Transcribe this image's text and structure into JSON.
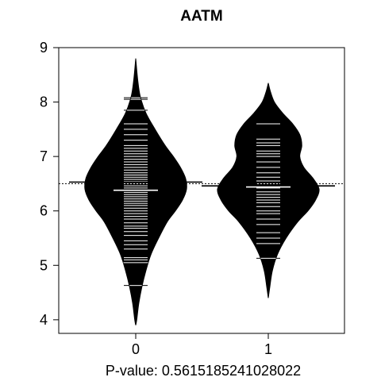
{
  "chart_data": {
    "type": "beanplot",
    "title": "AATM",
    "xlabel": "P-value: 0.5615185241028022",
    "ylabel": "",
    "categories": [
      "0",
      "1"
    ],
    "ylim": [
      3.75,
      9
    ],
    "yticks": [
      4,
      5,
      6,
      7,
      8,
      9
    ],
    "overall_mean": 6.5,
    "colors": {
      "bean_fill": "#000000",
      "bean_lines": "#ffffff",
      "axes": "#000000",
      "background": "#ffffff"
    },
    "beans": [
      {
        "group": "0",
        "range": [
          3.9,
          8.8
        ],
        "mean": 6.38,
        "group_mean_line": 6.53,
        "density_profile": [
          [
            3.9,
            0.0
          ],
          [
            4.0,
            0.02
          ],
          [
            4.3,
            0.06
          ],
          [
            4.6,
            0.12
          ],
          [
            4.9,
            0.2
          ],
          [
            5.2,
            0.3
          ],
          [
            5.5,
            0.45
          ],
          [
            5.8,
            0.62
          ],
          [
            6.0,
            0.78
          ],
          [
            6.2,
            0.92
          ],
          [
            6.4,
            1.0
          ],
          [
            6.6,
            0.98
          ],
          [
            6.8,
            0.88
          ],
          [
            7.0,
            0.74
          ],
          [
            7.2,
            0.58
          ],
          [
            7.5,
            0.38
          ],
          [
            7.8,
            0.2
          ],
          [
            8.1,
            0.09
          ],
          [
            8.4,
            0.04
          ],
          [
            8.8,
            0.0
          ]
        ],
        "observations": [
          4.63,
          5.05,
          5.1,
          5.14,
          5.3,
          5.38,
          5.45,
          5.55,
          5.62,
          5.68,
          5.72,
          5.78,
          5.85,
          5.9,
          5.95,
          6.0,
          6.05,
          6.1,
          6.14,
          6.18,
          6.22,
          6.26,
          6.3,
          6.34,
          6.38,
          6.42,
          6.46,
          6.5,
          6.54,
          6.58,
          6.62,
          6.66,
          6.7,
          6.75,
          6.8,
          6.85,
          6.9,
          6.95,
          7.0,
          7.05,
          7.1,
          7.15,
          7.2,
          7.3,
          7.4,
          7.5,
          7.6,
          7.85,
          8.05,
          8.08
        ]
      },
      {
        "group": "1",
        "range": [
          4.4,
          8.35
        ],
        "mean": 6.44,
        "group_mean_line": 6.46,
        "density_profile": [
          [
            4.4,
            0.0
          ],
          [
            4.6,
            0.03
          ],
          [
            4.9,
            0.08
          ],
          [
            5.2,
            0.18
          ],
          [
            5.5,
            0.35
          ],
          [
            5.8,
            0.58
          ],
          [
            6.0,
            0.78
          ],
          [
            6.2,
            0.93
          ],
          [
            6.4,
            1.0
          ],
          [
            6.6,
            0.88
          ],
          [
            6.8,
            0.7
          ],
          [
            7.0,
            0.62
          ],
          [
            7.2,
            0.66
          ],
          [
            7.4,
            0.62
          ],
          [
            7.6,
            0.48
          ],
          [
            7.8,
            0.28
          ],
          [
            8.0,
            0.12
          ],
          [
            8.2,
            0.04
          ],
          [
            8.35,
            0.0
          ]
        ],
        "observations": [
          5.13,
          5.4,
          5.5,
          5.6,
          5.75,
          5.85,
          5.95,
          6.0,
          6.08,
          6.15,
          6.2,
          6.25,
          6.3,
          6.35,
          6.42,
          6.5,
          6.55,
          6.62,
          6.7,
          6.8,
          6.9,
          7.0,
          7.05,
          7.1,
          7.2,
          7.25,
          7.32,
          7.6
        ]
      }
    ]
  }
}
